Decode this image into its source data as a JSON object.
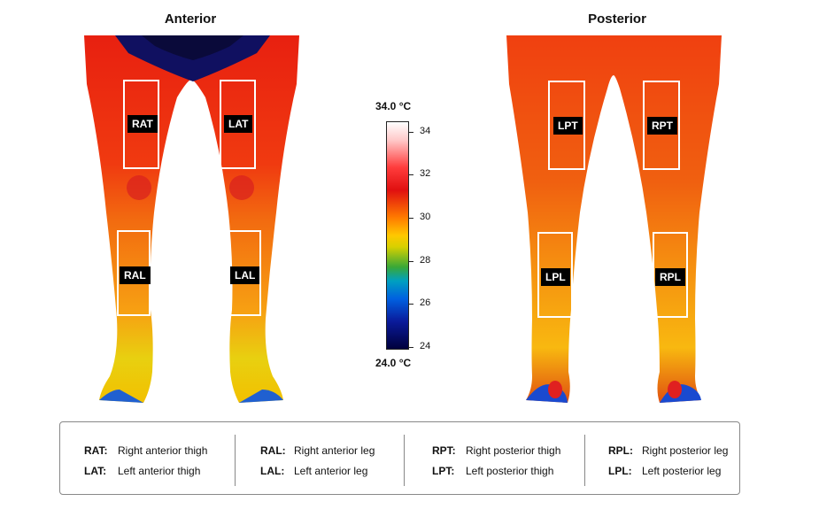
{
  "panels": {
    "anterior_title": "Anterior",
    "posterior_title": "Posterior"
  },
  "roi_labels": {
    "rat": "RAT",
    "lat": "LAT",
    "ral": "RAL",
    "lal": "LAL",
    "lpt": "LPT",
    "rpt": "RPT",
    "lpl": "LPL",
    "rpl": "RPL"
  },
  "colorbar": {
    "max_label": "34.0 °C",
    "min_label": "24.0 °C",
    "ticks": [
      "34",
      "32",
      "30",
      "28",
      "26",
      "24"
    ],
    "scale_range_celsius": [
      24.0,
      34.0
    ]
  },
  "legend": [
    [
      {
        "abbr": "RAT:",
        "desc": "Right anterior thigh"
      },
      {
        "abbr": "LAT:",
        "desc": "Left anterior thigh"
      }
    ],
    [
      {
        "abbr": "RAL:",
        "desc": "Right anterior leg"
      },
      {
        "abbr": "LAL:",
        "desc": "Left anterior leg"
      }
    ],
    [
      {
        "abbr": "RPT:",
        "desc": "Right posterior thigh"
      },
      {
        "abbr": "LPT:",
        "desc": "Left posterior thigh"
      }
    ],
    [
      {
        "abbr": "RPL:",
        "desc": "Right posterior leg"
      },
      {
        "abbr": "LPL:",
        "desc": "Left posterior leg"
      }
    ]
  ]
}
